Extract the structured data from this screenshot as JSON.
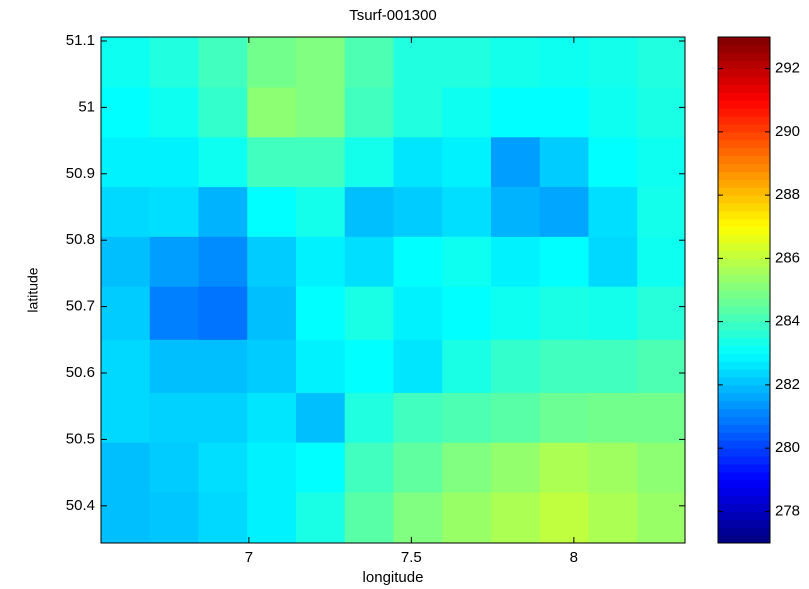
{
  "chart_data": {
    "type": "heatmap",
    "title": "Tsurf-001300",
    "xlabel": "longitude",
    "ylabel": "latitude",
    "colormap": "jet",
    "x": [
      6.62,
      6.77,
      6.92,
      7.07,
      7.22,
      7.37,
      7.52,
      7.67,
      7.82,
      7.97,
      8.12,
      8.27
    ],
    "y": [
      51.07,
      50.99,
      50.92,
      50.84,
      50.77,
      50.69,
      50.61,
      50.53,
      50.46,
      50.38
    ],
    "values": [
      [
        283.2,
        283.5,
        284,
        284.8,
        285,
        284.2,
        283.5,
        283.5,
        283.3,
        283.2,
        283.3,
        283.5
      ],
      [
        283,
        283.2,
        283.8,
        285.2,
        285,
        284,
        283.5,
        283.2,
        283,
        283,
        283.2,
        283.4
      ],
      [
        282.8,
        282.8,
        283.2,
        284,
        284,
        283.3,
        282.6,
        282.8,
        281.5,
        282.2,
        283,
        283.2
      ],
      [
        282.4,
        282.5,
        281.8,
        283,
        283.3,
        282,
        282.2,
        282.5,
        281.8,
        281.6,
        282.5,
        283.3
      ],
      [
        282,
        281.5,
        281.2,
        282.2,
        282.8,
        282.5,
        283,
        283.2,
        282.8,
        283,
        282.4,
        283.2
      ],
      [
        282.2,
        281,
        280.8,
        282,
        283,
        283.4,
        282.8,
        283,
        283.2,
        283.4,
        283.3,
        283.6
      ],
      [
        282.4,
        282,
        282,
        282.2,
        282.8,
        283,
        282.6,
        283.4,
        283.8,
        284,
        284,
        284.2
      ],
      [
        282.4,
        282.3,
        282.3,
        282.6,
        282,
        283.5,
        284,
        284.2,
        284.4,
        284.7,
        284.8,
        284.8
      ],
      [
        282,
        282.2,
        282.5,
        282.8,
        283,
        284,
        284.5,
        285,
        285.3,
        285.7,
        285.5,
        285.2
      ],
      [
        282,
        282.1,
        282.4,
        282.8,
        283.4,
        284.4,
        285,
        285.4,
        285.7,
        286,
        285.7,
        285.4
      ]
    ],
    "xlim": [
      6.545,
      8.342
    ],
    "xticks": [
      7,
      7.5,
      8
    ],
    "ylim": [
      50.344,
      51.106
    ],
    "yticks": [
      50.4,
      50.5,
      50.6,
      50.7,
      50.8,
      50.9,
      51,
      51.1
    ],
    "clim": [
      277,
      293
    ],
    "cticks": [
      278,
      280,
      282,
      284,
      286,
      288,
      290,
      292
    ]
  }
}
